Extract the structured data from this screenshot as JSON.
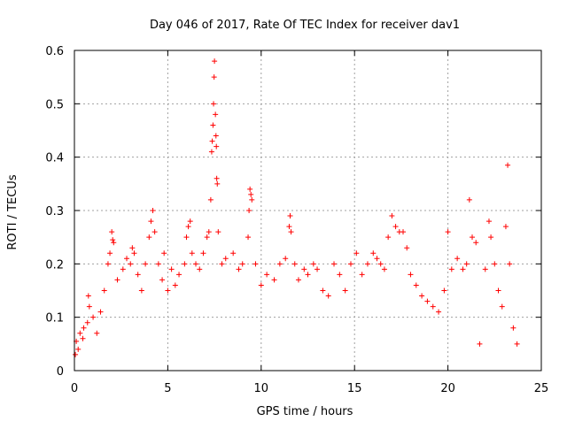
{
  "chart_data": {
    "type": "scatter",
    "title": "Day 046 of 2017, Rate Of TEC Index for receiver dav1",
    "xlabel": "GPS time / hours",
    "ylabel": "ROTI / TECUs",
    "xlim": [
      0,
      25
    ],
    "ylim": [
      0,
      0.6
    ],
    "xticks": [
      0,
      5,
      10,
      15,
      20,
      25
    ],
    "xtick_labels": [
      "0",
      "5",
      "10",
      "15",
      "20",
      "25"
    ],
    "yticks": [
      0,
      0.1,
      0.2,
      0.3,
      0.4,
      0.5,
      0.6
    ],
    "ytick_labels": [
      "0",
      "0.1",
      "0.2",
      "0.3",
      "0.4",
      "0.5",
      "0.6"
    ],
    "grid": true,
    "marker": "plus",
    "color": "#ff0000",
    "series": [
      {
        "points": [
          [
            0.05,
            0.03
          ],
          [
            0.1,
            0.055
          ],
          [
            0.2,
            0.04
          ],
          [
            0.3,
            0.07
          ],
          [
            0.45,
            0.06
          ],
          [
            0.5,
            0.08
          ],
          [
            0.7,
            0.09
          ],
          [
            0.75,
            0.14
          ],
          [
            0.8,
            0.12
          ],
          [
            1.0,
            0.1
          ],
          [
            1.2,
            0.07
          ],
          [
            1.4,
            0.11
          ],
          [
            1.6,
            0.15
          ],
          [
            1.8,
            0.2
          ],
          [
            1.9,
            0.22
          ],
          [
            2.0,
            0.26
          ],
          [
            2.05,
            0.245
          ],
          [
            2.1,
            0.24
          ],
          [
            2.3,
            0.17
          ],
          [
            2.6,
            0.19
          ],
          [
            2.8,
            0.21
          ],
          [
            3.0,
            0.2
          ],
          [
            3.1,
            0.23
          ],
          [
            3.2,
            0.22
          ],
          [
            3.4,
            0.18
          ],
          [
            3.6,
            0.15
          ],
          [
            3.8,
            0.2
          ],
          [
            4.0,
            0.25
          ],
          [
            4.1,
            0.28
          ],
          [
            4.2,
            0.3
          ],
          [
            4.3,
            0.26
          ],
          [
            4.5,
            0.2
          ],
          [
            4.7,
            0.17
          ],
          [
            4.8,
            0.22
          ],
          [
            5.0,
            0.15
          ],
          [
            5.2,
            0.19
          ],
          [
            5.4,
            0.16
          ],
          [
            5.6,
            0.18
          ],
          [
            5.9,
            0.2
          ],
          [
            6.0,
            0.25
          ],
          [
            6.1,
            0.27
          ],
          [
            6.2,
            0.28
          ],
          [
            6.3,
            0.22
          ],
          [
            6.5,
            0.2
          ],
          [
            6.7,
            0.19
          ],
          [
            6.9,
            0.22
          ],
          [
            7.1,
            0.25
          ],
          [
            7.2,
            0.26
          ],
          [
            7.3,
            0.32
          ],
          [
            7.35,
            0.41
          ],
          [
            7.38,
            0.43
          ],
          [
            7.42,
            0.46
          ],
          [
            7.45,
            0.5
          ],
          [
            7.48,
            0.55
          ],
          [
            7.5,
            0.58
          ],
          [
            7.55,
            0.48
          ],
          [
            7.58,
            0.44
          ],
          [
            7.6,
            0.42
          ],
          [
            7.62,
            0.36
          ],
          [
            7.65,
            0.35
          ],
          [
            7.7,
            0.26
          ],
          [
            7.9,
            0.2
          ],
          [
            8.1,
            0.21
          ],
          [
            8.5,
            0.22
          ],
          [
            8.8,
            0.19
          ],
          [
            9.0,
            0.2
          ],
          [
            9.3,
            0.25
          ],
          [
            9.35,
            0.3
          ],
          [
            9.4,
            0.34
          ],
          [
            9.45,
            0.33
          ],
          [
            9.5,
            0.32
          ],
          [
            9.7,
            0.2
          ],
          [
            10.0,
            0.16
          ],
          [
            10.3,
            0.18
          ],
          [
            10.7,
            0.17
          ],
          [
            11.0,
            0.2
          ],
          [
            11.3,
            0.21
          ],
          [
            11.5,
            0.27
          ],
          [
            11.55,
            0.29
          ],
          [
            11.6,
            0.26
          ],
          [
            11.8,
            0.2
          ],
          [
            12.0,
            0.17
          ],
          [
            12.3,
            0.19
          ],
          [
            12.5,
            0.18
          ],
          [
            12.8,
            0.2
          ],
          [
            13.0,
            0.19
          ],
          [
            13.3,
            0.15
          ],
          [
            13.6,
            0.14
          ],
          [
            13.9,
            0.2
          ],
          [
            14.2,
            0.18
          ],
          [
            14.5,
            0.15
          ],
          [
            14.8,
            0.2
          ],
          [
            15.1,
            0.22
          ],
          [
            15.4,
            0.18
          ],
          [
            15.7,
            0.2
          ],
          [
            16.0,
            0.22
          ],
          [
            16.2,
            0.21
          ],
          [
            16.4,
            0.2
          ],
          [
            16.6,
            0.19
          ],
          [
            16.8,
            0.25
          ],
          [
            17.0,
            0.29
          ],
          [
            17.2,
            0.27
          ],
          [
            17.4,
            0.26
          ],
          [
            17.6,
            0.26
          ],
          [
            17.8,
            0.23
          ],
          [
            18.0,
            0.18
          ],
          [
            18.3,
            0.16
          ],
          [
            18.6,
            0.14
          ],
          [
            18.9,
            0.13
          ],
          [
            19.2,
            0.12
          ],
          [
            19.5,
            0.11
          ],
          [
            19.8,
            0.15
          ],
          [
            20.0,
            0.26
          ],
          [
            20.2,
            0.19
          ],
          [
            20.5,
            0.21
          ],
          [
            20.8,
            0.19
          ],
          [
            21.0,
            0.2
          ],
          [
            21.15,
            0.32
          ],
          [
            21.3,
            0.25
          ],
          [
            21.5,
            0.24
          ],
          [
            21.7,
            0.05
          ],
          [
            22.0,
            0.19
          ],
          [
            22.2,
            0.28
          ],
          [
            22.3,
            0.25
          ],
          [
            22.5,
            0.2
          ],
          [
            22.7,
            0.15
          ],
          [
            22.9,
            0.12
          ],
          [
            23.1,
            0.27
          ],
          [
            23.2,
            0.385
          ],
          [
            23.3,
            0.2
          ],
          [
            23.5,
            0.08
          ],
          [
            23.7,
            0.05
          ]
        ]
      }
    ]
  }
}
